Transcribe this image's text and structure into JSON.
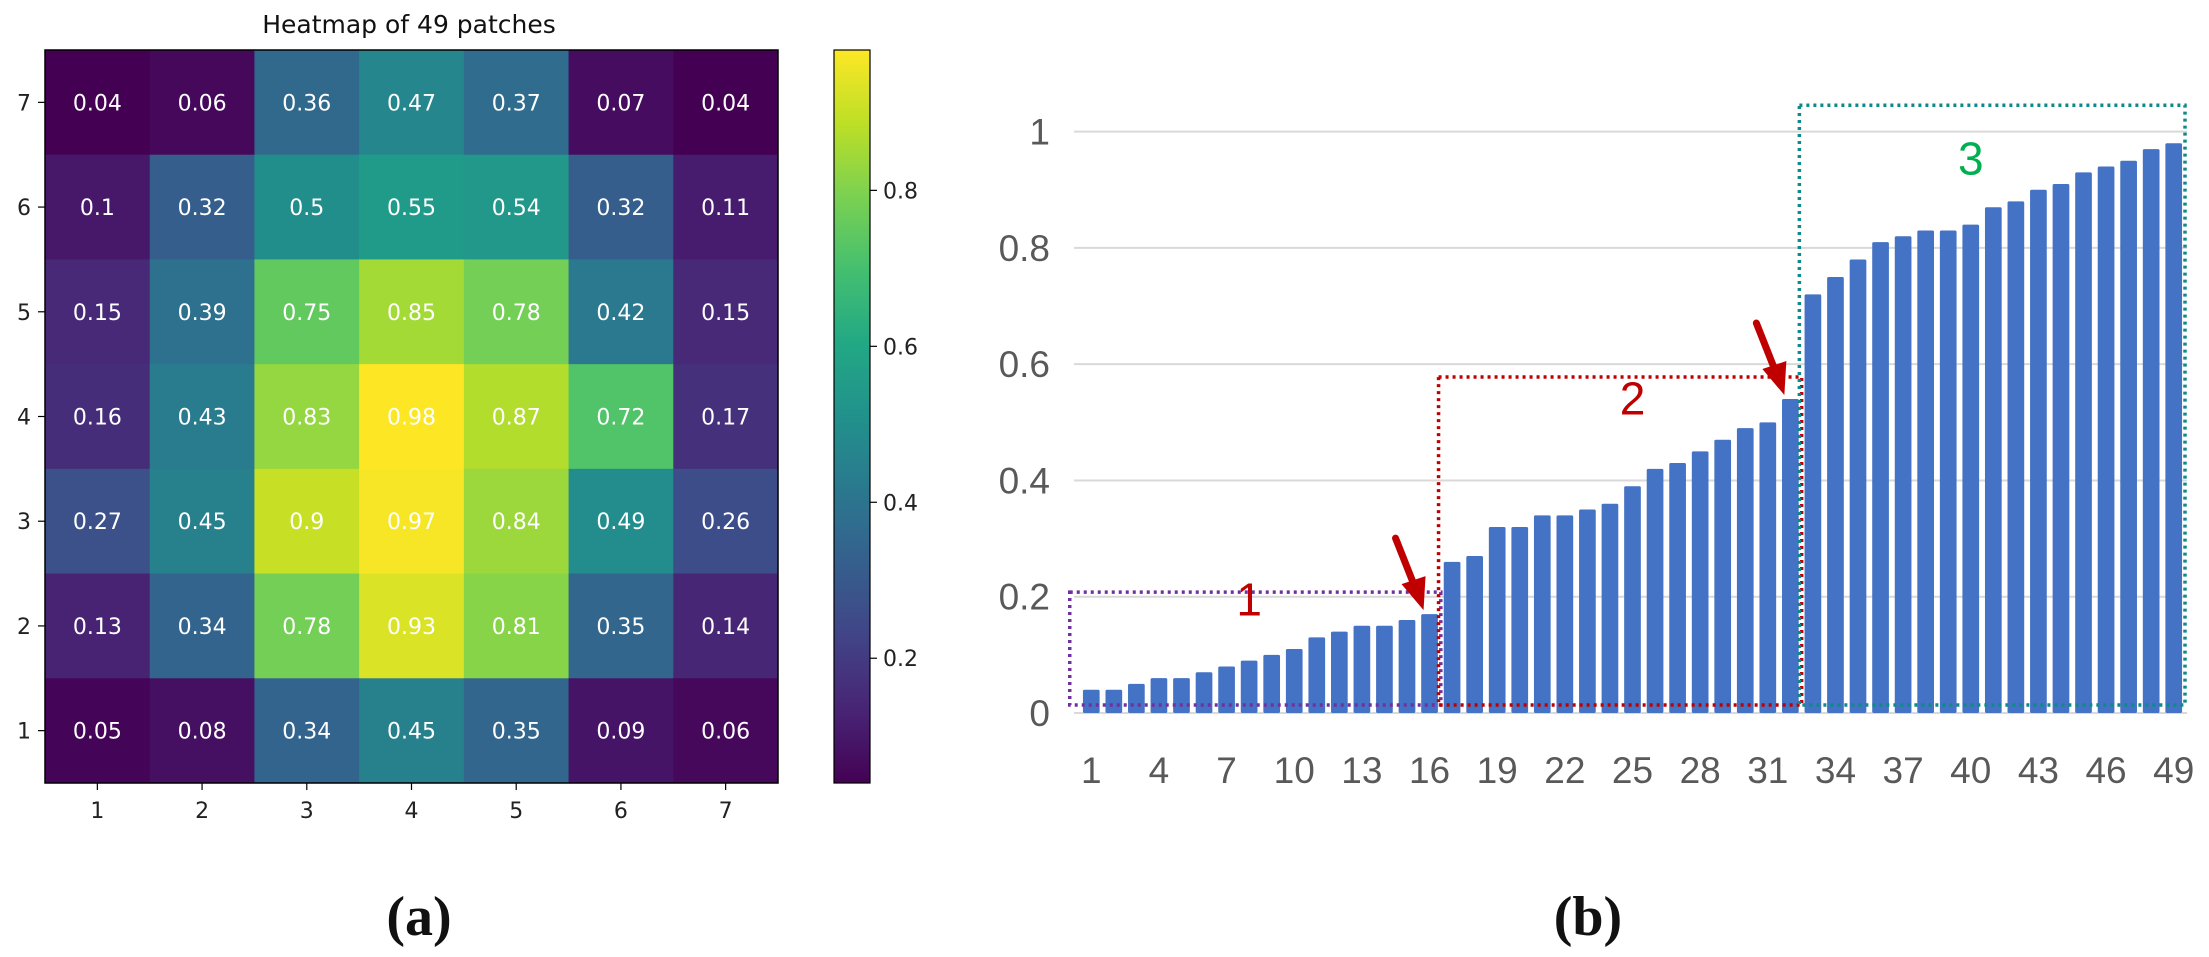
{
  "chart_data": [
    {
      "type": "heatmap",
      "title": "Heatmap of 49 patches",
      "panel_label": "(a)",
      "x_ticks": [
        "1",
        "2",
        "3",
        "4",
        "5",
        "6",
        "7"
      ],
      "y_ticks": [
        "7",
        "6",
        "5",
        "4",
        "3",
        "2",
        "1"
      ],
      "values": [
        [
          0.04,
          0.06,
          0.36,
          0.47,
          0.37,
          0.07,
          0.04
        ],
        [
          0.1,
          0.32,
          0.5,
          0.55,
          0.54,
          0.32,
          0.11
        ],
        [
          0.15,
          0.39,
          0.75,
          0.85,
          0.78,
          0.42,
          0.15
        ],
        [
          0.16,
          0.43,
          0.83,
          0.98,
          0.87,
          0.72,
          0.17
        ],
        [
          0.27,
          0.45,
          0.9,
          0.97,
          0.84,
          0.49,
          0.26
        ],
        [
          0.13,
          0.34,
          0.78,
          0.93,
          0.81,
          0.35,
          0.14
        ],
        [
          0.05,
          0.08,
          0.34,
          0.45,
          0.35,
          0.09,
          0.06
        ]
      ],
      "colormap": "viridis",
      "colorbar": {
        "range": [
          0.04,
          0.98
        ],
        "ticks": [
          0.2,
          0.4,
          0.6,
          0.8
        ],
        "tick_labels": [
          "0.2",
          "0.4",
          "0.6",
          "0.8"
        ]
      }
    },
    {
      "type": "bar",
      "panel_label": "(b)",
      "bar_color": "#4472c4",
      "ylim": [
        0,
        1.02
      ],
      "y_ticks": [
        0,
        0.2,
        0.4,
        0.6,
        0.8,
        1
      ],
      "y_tick_labels": [
        "0",
        "0.2",
        "0.4",
        "0.6",
        "0.8",
        "1"
      ],
      "x_tick_labels": [
        "1",
        "4",
        "7",
        "10",
        "13",
        "16",
        "19",
        "22",
        "25",
        "28",
        "31",
        "34",
        "37",
        "40",
        "43",
        "46",
        "49"
      ],
      "categories": [
        "1",
        "2",
        "3",
        "4",
        "5",
        "6",
        "7",
        "8",
        "9",
        "10",
        "11",
        "12",
        "13",
        "14",
        "15",
        "16",
        "17",
        "18",
        "19",
        "20",
        "21",
        "22",
        "23",
        "24",
        "25",
        "26",
        "27",
        "28",
        "29",
        "30",
        "31",
        "32",
        "33",
        "34",
        "35",
        "36",
        "37",
        "38",
        "39",
        "40",
        "41",
        "42",
        "43",
        "44",
        "45",
        "46",
        "47",
        "48",
        "49"
      ],
      "values": [
        0.04,
        0.04,
        0.05,
        0.06,
        0.06,
        0.07,
        0.08,
        0.09,
        0.1,
        0.11,
        0.13,
        0.14,
        0.15,
        0.15,
        0.16,
        0.17,
        0.26,
        0.27,
        0.32,
        0.32,
        0.34,
        0.34,
        0.35,
        0.36,
        0.39,
        0.42,
        0.43,
        0.45,
        0.47,
        0.49,
        0.5,
        0.54,
        0.72,
        0.75,
        0.78,
        0.81,
        0.82,
        0.83,
        0.83,
        0.84,
        0.87,
        0.88,
        0.9,
        0.91,
        0.93,
        0.94,
        0.95,
        0.97,
        0.98
      ],
      "groups": [
        {
          "label": "1",
          "from": 1,
          "to": 16,
          "color": "#7030a0",
          "text_color": "#c00000"
        },
        {
          "label": "2",
          "from": 17,
          "to": 32,
          "color": "#c00000",
          "text_color": "#c00000"
        },
        {
          "label": "3",
          "from": 33,
          "to": 49,
          "color": "#0e8a8a",
          "text_color": "#00b050"
        }
      ],
      "arrows": [
        {
          "target_bar": 16,
          "color": "#c00000"
        },
        {
          "target_bar": 32,
          "color": "#c00000"
        }
      ]
    }
  ]
}
